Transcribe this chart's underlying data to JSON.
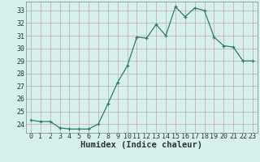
{
  "x": [
    0,
    1,
    2,
    3,
    4,
    5,
    6,
    7,
    8,
    9,
    10,
    11,
    12,
    13,
    14,
    15,
    16,
    17,
    18,
    19,
    20,
    21,
    22,
    23
  ],
  "y": [
    24.3,
    24.2,
    24.2,
    23.7,
    23.6,
    23.6,
    23.6,
    24.0,
    25.6,
    27.3,
    28.6,
    30.9,
    30.8,
    31.9,
    31.0,
    33.3,
    32.5,
    33.2,
    33.0,
    30.9,
    30.2,
    30.1,
    29.0,
    29.0
  ],
  "line_color": "#2e7d6e",
  "marker": "+",
  "bg_color": "#d6f0ee",
  "grid_color": "#c8a8a8",
  "xlabel": "Humidex (Indice chaleur)",
  "xlim": [
    -0.5,
    23.5
  ],
  "ylim": [
    23.3,
    33.7
  ],
  "yticks": [
    24,
    25,
    26,
    27,
    28,
    29,
    30,
    31,
    32,
    33
  ],
  "xticks": [
    0,
    1,
    2,
    3,
    4,
    5,
    6,
    7,
    8,
    9,
    10,
    11,
    12,
    13,
    14,
    15,
    16,
    17,
    18,
    19,
    20,
    21,
    22,
    23
  ],
  "tick_fontsize": 6.0,
  "xlabel_fontsize": 7.5
}
